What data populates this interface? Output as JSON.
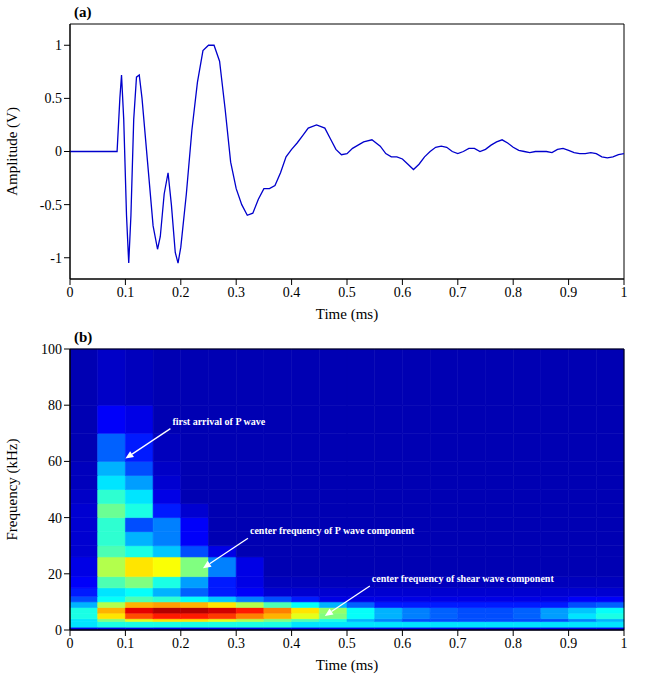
{
  "chart_data": [
    {
      "type": "line",
      "panel_label": "(a)",
      "x_label": "Time (ms)",
      "y_label": "Amplitude (V)",
      "color": "#0000cc",
      "grid": false,
      "xlim": [
        0,
        1
      ],
      "ylim": [
        -1.2,
        1.2
      ],
      "xticks": [
        0,
        0.1,
        0.2,
        0.3,
        0.4,
        0.5,
        0.6,
        0.7,
        0.8,
        0.9,
        1
      ],
      "yticks": [
        -1,
        -0.5,
        0,
        0.5,
        1
      ],
      "x": [
        0,
        0.08,
        0.085,
        0.09,
        0.093,
        0.097,
        0.102,
        0.106,
        0.11,
        0.115,
        0.12,
        0.125,
        0.13,
        0.14,
        0.15,
        0.158,
        0.163,
        0.17,
        0.177,
        0.183,
        0.19,
        0.195,
        0.2,
        0.21,
        0.22,
        0.23,
        0.24,
        0.25,
        0.26,
        0.27,
        0.28,
        0.29,
        0.3,
        0.31,
        0.32,
        0.33,
        0.34,
        0.35,
        0.36,
        0.37,
        0.38,
        0.39,
        0.4,
        0.41,
        0.42,
        0.43,
        0.445,
        0.46,
        0.47,
        0.48,
        0.49,
        0.5,
        0.51,
        0.52,
        0.53,
        0.545,
        0.56,
        0.57,
        0.58,
        0.59,
        0.6,
        0.61,
        0.62,
        0.63,
        0.64,
        0.65,
        0.66,
        0.67,
        0.68,
        0.69,
        0.7,
        0.71,
        0.72,
        0.73,
        0.74,
        0.75,
        0.76,
        0.77,
        0.78,
        0.79,
        0.8,
        0.81,
        0.82,
        0.83,
        0.84,
        0.85,
        0.86,
        0.87,
        0.88,
        0.89,
        0.9,
        0.91,
        0.92,
        0.93,
        0.94,
        0.95,
        0.96,
        0.97,
        0.98,
        0.99,
        1
      ],
      "values": [
        0,
        0,
        0,
        0.5,
        0.72,
        0.3,
        -0.6,
        -1.05,
        -0.6,
        0.3,
        0.7,
        0.72,
        0.5,
        -0.1,
        -0.7,
        -0.92,
        -0.8,
        -0.4,
        -0.2,
        -0.5,
        -0.95,
        -1.05,
        -0.9,
        -0.4,
        0.2,
        0.65,
        0.95,
        1,
        1,
        0.85,
        0.4,
        -0.1,
        -0.35,
        -0.5,
        -0.6,
        -0.58,
        -0.45,
        -0.35,
        -0.35,
        -0.32,
        -0.2,
        -0.05,
        0.02,
        0.08,
        0.15,
        0.22,
        0.25,
        0.22,
        0.12,
        0.02,
        -0.03,
        -0.02,
        0.03,
        0.06,
        0.09,
        0.11,
        0.05,
        -0.02,
        -0.05,
        -0.05,
        -0.07,
        -0.12,
        -0.17,
        -0.12,
        -0.05,
        0,
        0.04,
        0.05,
        0.04,
        0,
        -0.02,
        0,
        0.03,
        0.03,
        0,
        0.02,
        0.06,
        0.09,
        0.11,
        0.08,
        0.04,
        0.01,
        0,
        -0.01,
        0,
        0,
        0,
        -0.01,
        0.02,
        0.03,
        0.01,
        -0.01,
        -0.02,
        -0.02,
        -0.01,
        -0.02,
        -0.05,
        -0.06,
        -0.05,
        -0.03,
        -0.02
      ]
    },
    {
      "type": "heatmap",
      "panel_label": "(b)",
      "x_label": "Time (ms)",
      "y_label": "Frequency (kHz)",
      "grid": false,
      "xlim": [
        0,
        1
      ],
      "ylim": [
        0,
        100
      ],
      "xticks": [
        0,
        0.1,
        0.2,
        0.3,
        0.4,
        0.5,
        0.6,
        0.7,
        0.8,
        0.9,
        1
      ],
      "yticks": [
        0,
        20,
        40,
        60,
        80,
        100
      ],
      "zlim": [
        0,
        1
      ],
      "x_edges": [
        0,
        0.05,
        0.1,
        0.15,
        0.2,
        0.25,
        0.3,
        0.35,
        0.4,
        0.45,
        0.5,
        0.55,
        0.6,
        0.65,
        0.7,
        0.75,
        0.8,
        0.85,
        0.9,
        0.95,
        1
      ],
      "y_edges": [
        0,
        1,
        3,
        4,
        6,
        8,
        10,
        12,
        15,
        19,
        26,
        30,
        35,
        40,
        45,
        50,
        55,
        60,
        70,
        80,
        100
      ],
      "cells": [
        [
          0.1,
          0.1,
          0.1,
          0.1,
          0.1,
          0.1,
          0.1,
          0.1,
          0.1,
          0.1,
          0.1,
          0.1,
          0.1,
          0.1,
          0.1,
          0.1,
          0.1,
          0.1,
          0.1,
          0.1
        ],
        [
          0.35,
          0.4,
          0.4,
          0.4,
          0.4,
          0.4,
          0.4,
          0.4,
          0.35,
          0.35,
          0.35,
          0.35,
          0.35,
          0.35,
          0.35,
          0.35,
          0.35,
          0.35,
          0.35,
          0.35
        ],
        [
          0.35,
          0.5,
          0.6,
          0.65,
          0.65,
          0.6,
          0.55,
          0.5,
          0.45,
          0.4,
          0.3,
          0.25,
          0.2,
          0.2,
          0.2,
          0.2,
          0.2,
          0.2,
          0.25,
          0.3
        ],
        [
          0.4,
          0.65,
          0.8,
          0.85,
          0.85,
          0.82,
          0.75,
          0.7,
          0.6,
          0.5,
          0.38,
          0.3,
          0.25,
          0.22,
          0.2,
          0.2,
          0.22,
          0.28,
          0.35,
          0.4
        ],
        [
          0.4,
          0.7,
          0.9,
          0.95,
          0.95,
          0.92,
          0.85,
          0.75,
          0.65,
          0.52,
          0.38,
          0.3,
          0.25,
          0.22,
          0.2,
          0.2,
          0.22,
          0.28,
          0.32,
          0.38
        ],
        [
          0.3,
          0.55,
          0.7,
          0.72,
          0.7,
          0.65,
          0.55,
          0.45,
          0.38,
          0.3,
          0.22,
          0.15,
          0.15,
          0.15,
          0.15,
          0.15,
          0.15,
          0.15,
          0.2,
          0.22
        ],
        [
          0.2,
          0.38,
          0.45,
          0.42,
          0.38,
          0.32,
          0.25,
          0.2,
          0.15,
          0.1,
          0.1,
          0.1,
          0.1,
          0.1,
          0.1,
          0.1,
          0.1,
          0.1,
          0.12,
          0.12
        ],
        [
          0.15,
          0.35,
          0.38,
          0.3,
          0.22,
          0.15,
          0.12,
          0.08,
          0.08,
          0.08,
          0.08,
          0.08,
          0.08,
          0.08,
          0.08,
          0.08,
          0.08,
          0.08,
          0.08,
          0.08
        ],
        [
          0.12,
          0.45,
          0.5,
          0.4,
          0.28,
          0.15,
          0.1,
          0.06,
          0.06,
          0.06,
          0.06,
          0.06,
          0.06,
          0.06,
          0.06,
          0.06,
          0.06,
          0.06,
          0.06,
          0.06
        ],
        [
          0.1,
          0.55,
          0.65,
          0.62,
          0.5,
          0.25,
          0.1,
          0.05,
          0.05,
          0.05,
          0.05,
          0.05,
          0.05,
          0.05,
          0.05,
          0.05,
          0.05,
          0.05,
          0.05,
          0.05
        ],
        [
          0.08,
          0.45,
          0.4,
          0.32,
          0.2,
          0.1,
          0.05,
          0.05,
          0.05,
          0.05,
          0.05,
          0.05,
          0.05,
          0.05,
          0.05,
          0.05,
          0.05,
          0.05,
          0.05,
          0.05
        ],
        [
          0.08,
          0.42,
          0.3,
          0.25,
          0.12,
          0.05,
          0.05,
          0.05,
          0.05,
          0.05,
          0.05,
          0.05,
          0.05,
          0.05,
          0.05,
          0.05,
          0.05,
          0.05,
          0.05,
          0.05
        ],
        [
          0.08,
          0.42,
          0.2,
          0.25,
          0.12,
          0.05,
          0.05,
          0.05,
          0.05,
          0.05,
          0.05,
          0.05,
          0.05,
          0.05,
          0.05,
          0.05,
          0.05,
          0.05,
          0.05,
          0.05
        ],
        [
          0.08,
          0.48,
          0.4,
          0.15,
          0.08,
          0.05,
          0.05,
          0.05,
          0.05,
          0.05,
          0.05,
          0.05,
          0.05,
          0.05,
          0.05,
          0.05,
          0.05,
          0.05,
          0.05,
          0.05
        ],
        [
          0.07,
          0.42,
          0.35,
          0.1,
          0.05,
          0.05,
          0.05,
          0.05,
          0.05,
          0.05,
          0.05,
          0.05,
          0.05,
          0.05,
          0.05,
          0.05,
          0.05,
          0.05,
          0.05,
          0.05
        ],
        [
          0.06,
          0.35,
          0.28,
          0.08,
          0.05,
          0.05,
          0.05,
          0.05,
          0.05,
          0.05,
          0.05,
          0.05,
          0.05,
          0.05,
          0.05,
          0.05,
          0.05,
          0.05,
          0.05,
          0.05
        ],
        [
          0.06,
          0.3,
          0.2,
          0.07,
          0.05,
          0.05,
          0.05,
          0.05,
          0.05,
          0.05,
          0.05,
          0.05,
          0.05,
          0.05,
          0.05,
          0.05,
          0.05,
          0.05,
          0.05,
          0.05
        ],
        [
          0.05,
          0.22,
          0.15,
          0.06,
          0.05,
          0.05,
          0.05,
          0.05,
          0.05,
          0.05,
          0.05,
          0.05,
          0.05,
          0.05,
          0.05,
          0.05,
          0.05,
          0.05,
          0.05,
          0.05
        ],
        [
          0.05,
          0.12,
          0.1,
          0.05,
          0.05,
          0.05,
          0.05,
          0.05,
          0.05,
          0.05,
          0.05,
          0.05,
          0.05,
          0.05,
          0.05,
          0.05,
          0.05,
          0.05,
          0.05,
          0.05
        ],
        [
          0.05,
          0.07,
          0.06,
          0.05,
          0.05,
          0.05,
          0.05,
          0.05,
          0.05,
          0.05,
          0.05,
          0.05,
          0.05,
          0.05,
          0.05,
          0.05,
          0.05,
          0.05,
          0.05,
          0.05
        ]
      ],
      "annotations": [
        {
          "text": "first arrival of P wave",
          "x": 0.1,
          "y": 61
        },
        {
          "text": "center frequency of P wave component",
          "x": 0.24,
          "y": 22
        },
        {
          "text": "center frequency of shear wave component",
          "x": 0.46,
          "y": 5
        }
      ]
    }
  ]
}
